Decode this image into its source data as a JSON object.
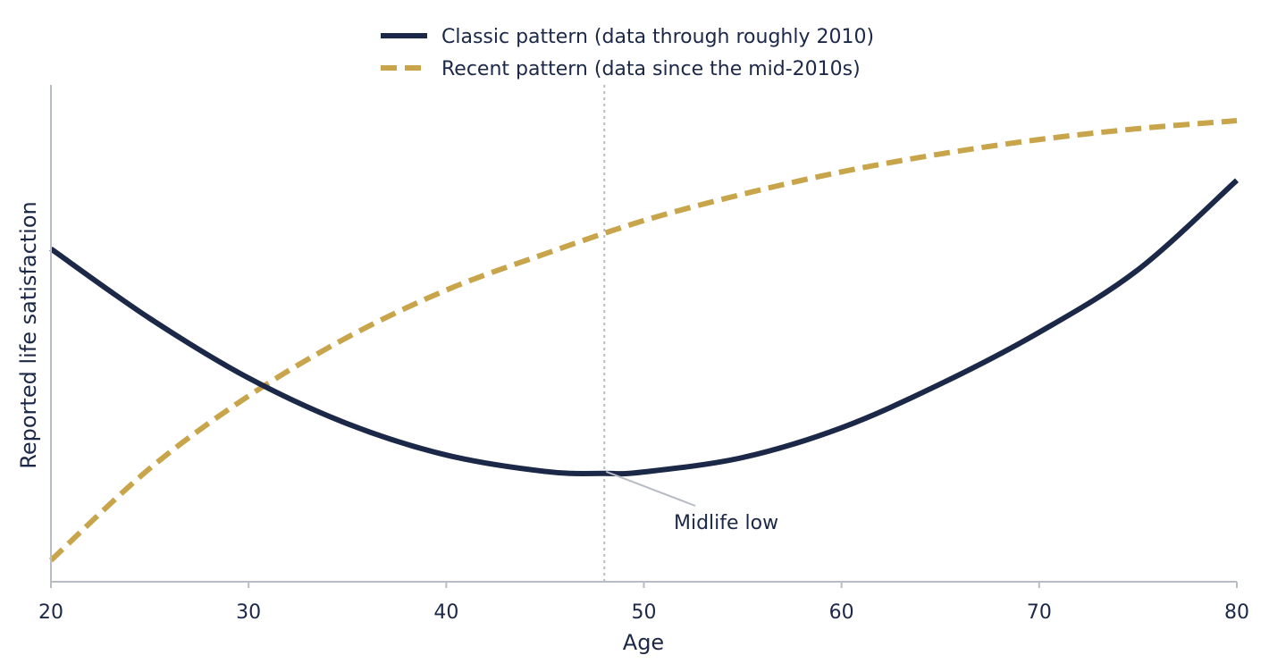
{
  "chart_data": {
    "type": "line",
    "title": "",
    "xlabel": "Age",
    "ylabel": "Reported life satisfaction",
    "xlim": [
      20,
      80
    ],
    "ylim": [
      0,
      1
    ],
    "x_ticks": [
      20,
      30,
      40,
      50,
      60,
      70,
      80
    ],
    "y_ticks_shown": false,
    "grid": false,
    "legend_position": "top-center",
    "series": [
      {
        "name": "Classic pattern (data through roughly 2010)",
        "color": "#1c2847",
        "style": "solid",
        "x": [
          20,
          25,
          30,
          35,
          40,
          45,
          48,
          50,
          55,
          60,
          65,
          70,
          75,
          80
        ],
        "y": [
          0.67,
          0.53,
          0.41,
          0.318,
          0.255,
          0.222,
          0.218,
          0.221,
          0.25,
          0.31,
          0.398,
          0.502,
          0.628,
          0.808
        ]
      },
      {
        "name": "Recent pattern (data since the mid-2010s)",
        "color": "#c8a54b",
        "style": "dashed",
        "x": [
          20,
          25,
          30,
          35,
          40,
          45,
          50,
          55,
          60,
          65,
          70,
          75,
          80
        ],
        "y": [
          0.043,
          0.228,
          0.374,
          0.492,
          0.587,
          0.66,
          0.727,
          0.78,
          0.825,
          0.861,
          0.89,
          0.912,
          0.928
        ]
      }
    ],
    "annotations": [
      {
        "text": "Midlife low",
        "x": 48,
        "y": 0.218
      }
    ],
    "reference_lines": [
      {
        "axis": "x",
        "value": 48,
        "style": "dotted",
        "color": "#b8bcc4"
      }
    ]
  }
}
